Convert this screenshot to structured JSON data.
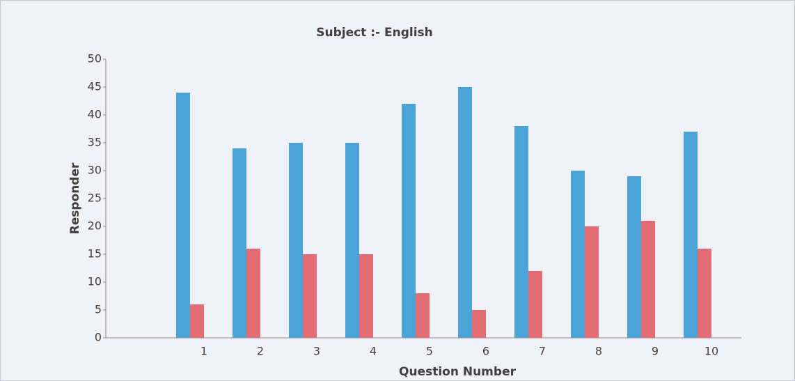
{
  "chart_data": {
    "type": "bar",
    "title": "Subject :- English",
    "x_label": "Question Number",
    "y_label": "Responder",
    "categories": [
      "1",
      "2",
      "3",
      "4",
      "5",
      "6",
      "7",
      "8",
      "9",
      "10"
    ],
    "series": [
      {
        "color": "#4ba3d8",
        "values": [
          44,
          34,
          35,
          35,
          42,
          45,
          38,
          30,
          29,
          37
        ]
      },
      {
        "color": "#e46c74",
        "values": [
          6,
          16,
          15,
          15,
          8,
          5,
          12,
          20,
          21,
          16
        ]
      }
    ],
    "ylim": [
      0,
      50
    ],
    "yticks": [
      0,
      5,
      10,
      15,
      20,
      25,
      30,
      35,
      40,
      45,
      50
    ],
    "grid": false
  }
}
